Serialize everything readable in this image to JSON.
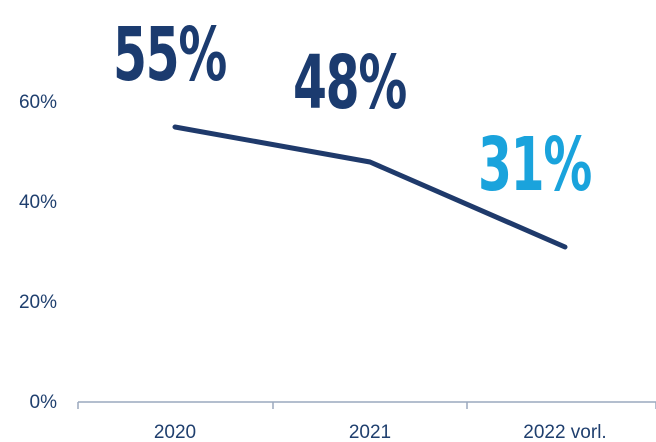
{
  "chart_data": {
    "type": "line",
    "categories": [
      "2020",
      "2021",
      "2022 vorl."
    ],
    "series": [
      {
        "values": [
          55,
          48,
          31
        ]
      }
    ],
    "data_labels": [
      "55%",
      "48%",
      "31%"
    ],
    "y_ticks": [
      "0%",
      "20%",
      "40%",
      "60%"
    ],
    "ylim": [
      0,
      70
    ],
    "grid": false,
    "colors": {
      "line": "#1f3a6b",
      "label_default": "#1b3b6f",
      "label_highlight": "#1aa3dc",
      "axis": "#9aa9bd",
      "tick_text": "#1f3f6e"
    },
    "highlight_index": 2
  }
}
